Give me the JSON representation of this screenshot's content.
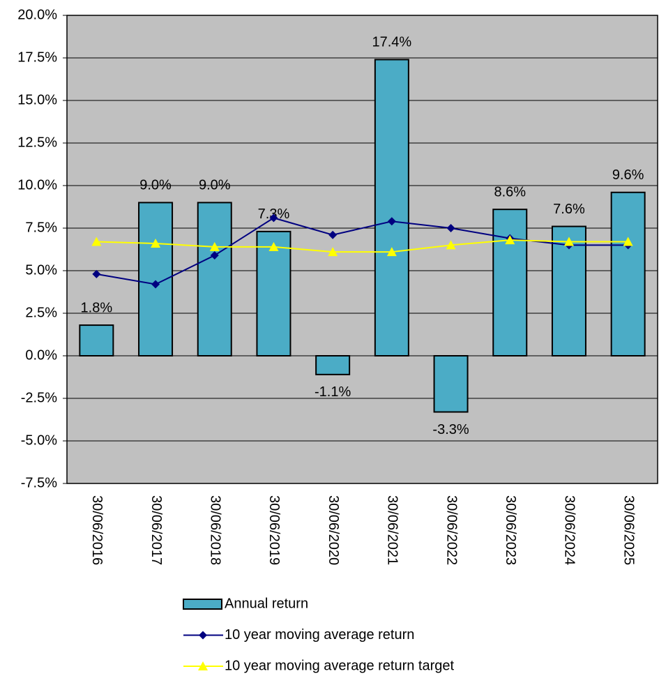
{
  "chart_data": {
    "type": "bar",
    "categories": [
      "30/06/2016",
      "30/06/2017",
      "30/06/2018",
      "30/06/2019",
      "30/06/2020",
      "30/06/2021",
      "30/06/2022",
      "30/06/2023",
      "30/06/2024",
      "30/06/2025"
    ],
    "series": [
      {
        "name": "Annual return",
        "type": "bar",
        "color": "#4bacc6",
        "values": [
          1.8,
          9.0,
          9.0,
          7.3,
          -1.1,
          17.4,
          -3.3,
          8.6,
          7.6,
          9.6
        ],
        "value_labels": [
          "1.8%",
          "9.0%",
          "9.0%",
          "7.3%",
          "-1.1%",
          "17.4%",
          "-3.3%",
          "8.6%",
          "7.6%",
          "9.6%"
        ]
      },
      {
        "name": "10 year moving average return",
        "type": "line",
        "color": "#000080",
        "marker": "diamond",
        "values": [
          4.8,
          4.2,
          5.9,
          8.1,
          7.1,
          7.9,
          7.5,
          6.9,
          6.5,
          6.5
        ]
      },
      {
        "name": "10 year moving average return target",
        "type": "line",
        "color": "#ffff00",
        "marker": "triangle",
        "values": [
          6.7,
          6.6,
          6.4,
          6.4,
          6.1,
          6.1,
          6.5,
          6.8,
          6.7,
          6.7
        ]
      }
    ],
    "ylim": [
      -7.5,
      20
    ],
    "yticks": [
      {
        "value": -7.5,
        "label": "-7.5%"
      },
      {
        "value": -5,
        "label": "-5.0%"
      },
      {
        "value": -2.5,
        "label": "-2.5%"
      },
      {
        "value": 0,
        "label": "0.0%"
      },
      {
        "value": 2.5,
        "label": "2.5%"
      },
      {
        "value": 5,
        "label": "5.0%"
      },
      {
        "value": 7.5,
        "label": "7.5%"
      },
      {
        "value": 10,
        "label": "10.0%"
      },
      {
        "value": 12.5,
        "label": "12.5%"
      },
      {
        "value": 15,
        "label": "15.0%"
      },
      {
        "value": 17.5,
        "label": "17.5%"
      },
      {
        "value": 20,
        "label": "20.0%"
      }
    ],
    "grid": true,
    "legend": "bottom"
  }
}
